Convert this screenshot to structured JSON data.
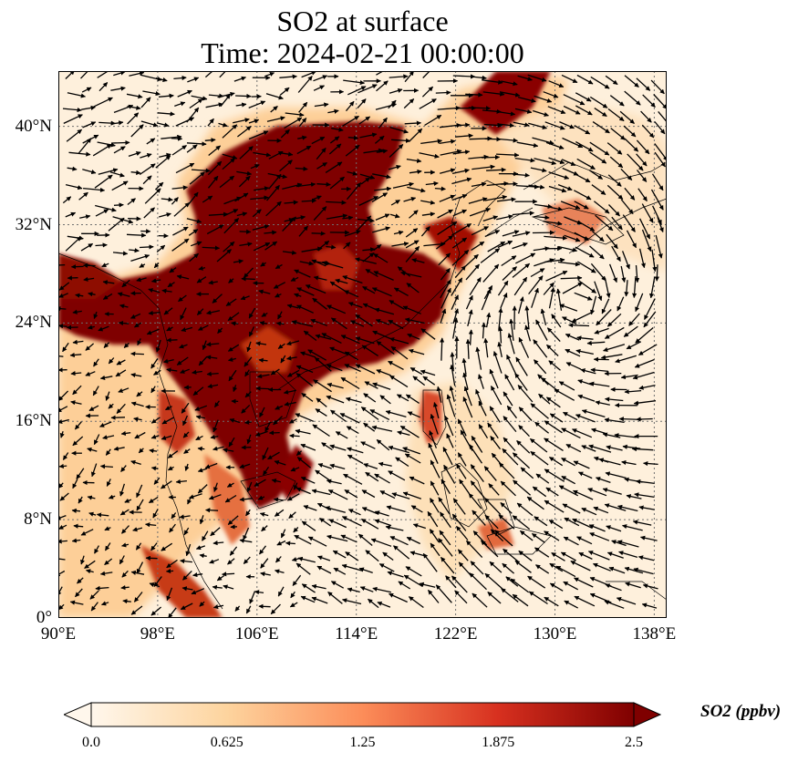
{
  "figure": {
    "title_line1": "SO2 at surface",
    "title_line2": "Time: 2024-02-21 00:00:00"
  },
  "map": {
    "projection": "PlateCarree",
    "lon_range": [
      90,
      139
    ],
    "lat_range": [
      0,
      44.5
    ],
    "lat_ticks": [
      {
        "value": 0,
        "label": "0°"
      },
      {
        "value": 8,
        "label": "8°N"
      },
      {
        "value": 16,
        "label": "16°N"
      },
      {
        "value": 24,
        "label": "24°N"
      },
      {
        "value": 32,
        "label": "32°N"
      },
      {
        "value": 40,
        "label": "40°N"
      }
    ],
    "lon_ticks": [
      {
        "value": 90,
        "label": "90°E"
      },
      {
        "value": 98,
        "label": "98°E"
      },
      {
        "value": 106,
        "label": "106°E"
      },
      {
        "value": 114,
        "label": "114°E"
      },
      {
        "value": 122,
        "label": "122°E"
      },
      {
        "value": 130,
        "label": "130°E"
      },
      {
        "value": 138,
        "label": "138°E"
      }
    ],
    "gridlines": true,
    "wind_vectors": true
  },
  "colorbar": {
    "label": "SO2 (ppbv)",
    "ticks": [
      "0.0",
      "0.625",
      "1.25",
      "1.875",
      "2.5"
    ],
    "range": [
      0,
      2.5
    ],
    "extend": "both",
    "colormap": "OrRd",
    "colors": [
      "#fff7ec",
      "#fdd49e",
      "#fc8d59",
      "#d7301f",
      "#7f0000"
    ]
  }
}
